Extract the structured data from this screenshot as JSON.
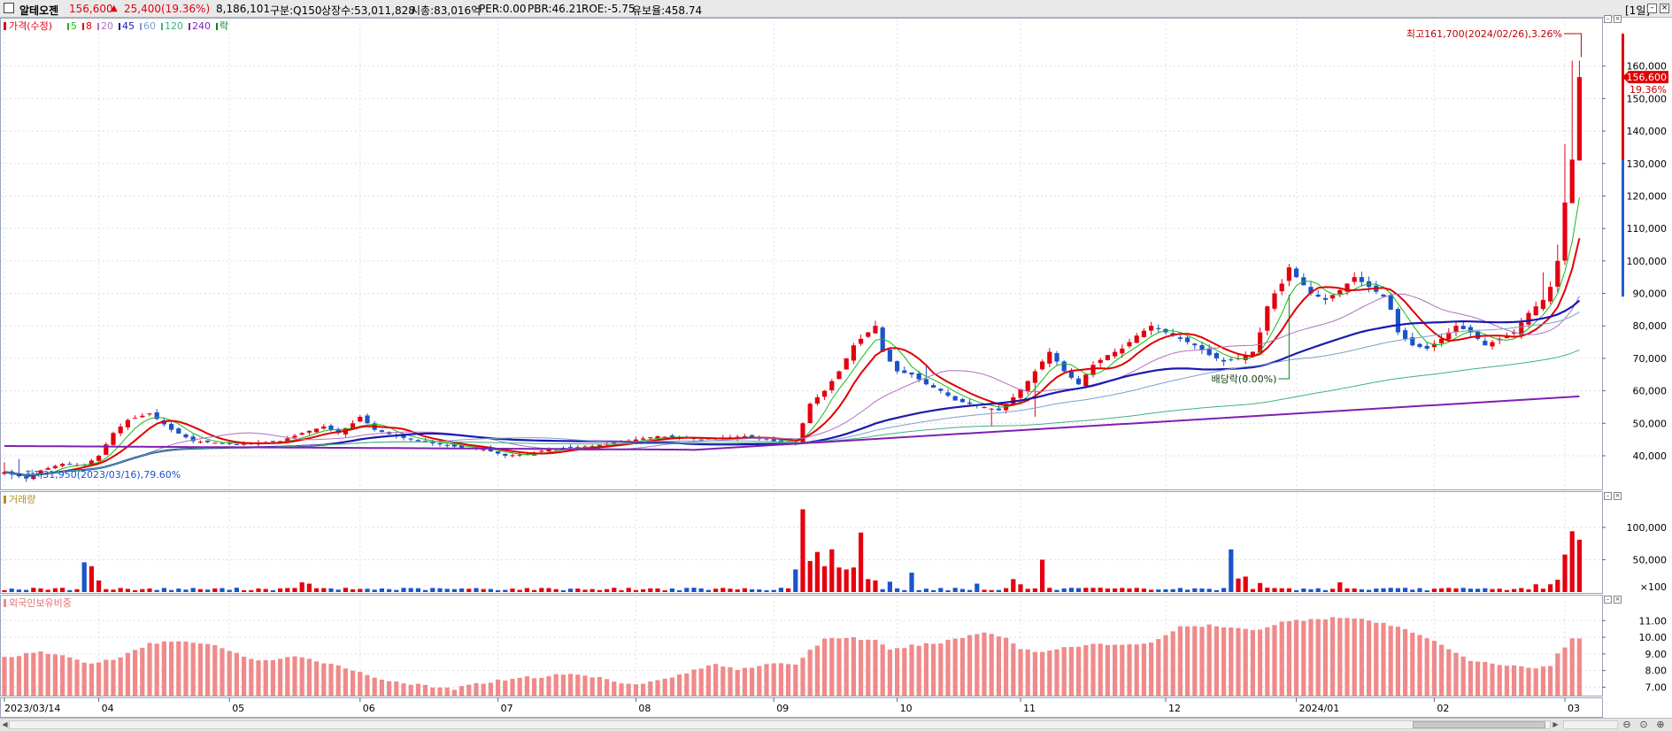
{
  "header": {
    "stock_name": "알테오젠",
    "price": "156,600",
    "change_arrow": "▲",
    "change": "25,400",
    "change_rate": "(19.36%)",
    "volume": "8,186,101",
    "market": "구분:Q150",
    "shares": "상장수:53,011,828",
    "market_cap": "시총:83,016억",
    "per": "PER:0.00",
    "pbr": "PBR:46.21",
    "roe": "ROE:-5.75",
    "float": "유보율:458.74",
    "period": "[1일]",
    "colors": {
      "up": "#e4000f",
      "down": "#1a54c8"
    }
  },
  "price_panel": {
    "legend_label": "가격(수정)",
    "ma_labels": [
      "5",
      "8",
      "20",
      "45",
      "60",
      "120",
      "240",
      "락"
    ],
    "ma_colors": [
      "#18b818",
      "#e00000",
      "#b070c0",
      "#1a1ab0",
      "#7aa0d0",
      "#40b080",
      "#8020b0",
      "#108020"
    ],
    "current_price_tag": "156,600",
    "current_rate_tag": "19.36%",
    "high_annotation": "최고161,700(2024/02/26),3.26%",
    "low_annotation": "최저31,950(2023/03/16),79.60%",
    "dividend_annotation": "배당락(0.00%)"
  },
  "volume_panel": {
    "legend_label": "거래량",
    "unit_label": "×100"
  },
  "foreign_panel": {
    "legend_label": "외국인보유비중"
  },
  "chart_data": [
    {
      "type": "candlestick",
      "name": "가격(수정)",
      "y_ticks": [
        40000,
        50000,
        60000,
        70000,
        80000,
        90000,
        100000,
        110000,
        120000,
        130000,
        140000,
        150000,
        160000
      ],
      "y_tick_labels": [
        "40,000",
        "50,000",
        "60,000",
        "70,000",
        "80,000",
        "90,000",
        "100,000",
        "110,000",
        "120,000",
        "130,000",
        "140,000",
        "150,000",
        "160,000"
      ],
      "ylim": [
        31000,
        170000
      ],
      "x_labels": [
        "2023/03/14",
        "04",
        "05",
        "06",
        "07",
        "08",
        "09",
        "10",
        "11",
        "12",
        "2024/01",
        "02",
        "03"
      ],
      "x_label_positions": [
        0,
        13,
        31,
        49,
        68,
        87,
        106,
        123,
        140,
        160,
        178,
        197,
        215
      ],
      "anchors": [
        [
          0,
          35000
        ],
        [
          3,
          33000
        ],
        [
          5,
          35500
        ],
        [
          8,
          37500
        ],
        [
          11,
          37000
        ],
        [
          13,
          40000
        ],
        [
          15,
          47000
        ],
        [
          17,
          51000
        ],
        [
          20,
          53000
        ],
        [
          23,
          48000
        ],
        [
          26,
          44500
        ],
        [
          29,
          44000
        ],
        [
          32,
          43500
        ],
        [
          35,
          44000
        ],
        [
          38,
          44500
        ],
        [
          41,
          47000
        ],
        [
          44,
          49000
        ],
        [
          46,
          47000
        ],
        [
          48,
          50000
        ],
        [
          49,
          52000
        ],
        [
          51,
          48000
        ],
        [
          54,
          46000
        ],
        [
          57,
          44500
        ],
        [
          60,
          43500
        ],
        [
          63,
          42500
        ],
        [
          66,
          42000
        ],
        [
          69,
          40000
        ],
        [
          72,
          40500
        ],
        [
          75,
          42000
        ],
        [
          78,
          42500
        ],
        [
          81,
          43000
        ],
        [
          84,
          44000
        ],
        [
          87,
          45000
        ],
        [
          90,
          46000
        ],
        [
          93,
          45500
        ],
        [
          96,
          45000
        ],
        [
          99,
          45500
        ],
        [
          102,
          46000
        ],
        [
          105,
          45000
        ],
        [
          107,
          44000
        ],
        [
          109,
          43500
        ],
        [
          110,
          50000
        ],
        [
          111,
          56000
        ],
        [
          113,
          60000
        ],
        [
          115,
          66000
        ],
        [
          117,
          74000
        ],
        [
          119,
          78000
        ],
        [
          120,
          80000
        ],
        [
          121,
          72000
        ],
        [
          123,
          66000
        ],
        [
          125,
          65000
        ],
        [
          127,
          62000
        ],
        [
          129,
          60000
        ],
        [
          131,
          57000
        ],
        [
          133,
          56000
        ],
        [
          135,
          55000
        ],
        [
          137,
          54000
        ],
        [
          139,
          58000
        ],
        [
          141,
          63000
        ],
        [
          143,
          69000
        ],
        [
          144,
          72000
        ],
        [
          146,
          66000
        ],
        [
          148,
          62000
        ],
        [
          150,
          68000
        ],
        [
          152,
          71000
        ],
        [
          154,
          73000
        ],
        [
          156,
          77000
        ],
        [
          158,
          80000
        ],
        [
          160,
          78000
        ],
        [
          162,
          76000
        ],
        [
          164,
          74000
        ],
        [
          166,
          71000
        ],
        [
          168,
          69000
        ],
        [
          170,
          70000
        ],
        [
          172,
          72000
        ],
        [
          173,
          78000
        ],
        [
          174,
          86000
        ],
        [
          175,
          90000
        ],
        [
          176,
          93000
        ],
        [
          177,
          98000
        ],
        [
          178,
          95000
        ],
        [
          180,
          90000
        ],
        [
          182,
          88000
        ],
        [
          184,
          91000
        ],
        [
          186,
          95000
        ],
        [
          188,
          92000
        ],
        [
          190,
          89000
        ],
        [
          191,
          85000
        ],
        [
          192,
          78000
        ],
        [
          194,
          74000
        ],
        [
          196,
          73000
        ],
        [
          198,
          76000
        ],
        [
          200,
          80000
        ],
        [
          202,
          78000
        ],
        [
          204,
          74000
        ],
        [
          206,
          76000
        ],
        [
          208,
          78000
        ],
        [
          210,
          84000
        ],
        [
          212,
          88000
        ],
        [
          213,
          92000
        ],
        [
          214,
          100000
        ],
        [
          215,
          118000
        ],
        [
          216,
          131200
        ],
        [
          217,
          156600
        ]
      ],
      "extra_highs": {
        "0": 38000,
        "2": 39000,
        "127": 68000,
        "212": 96500,
        "214": 105000,
        "215": 136000,
        "216": 161700,
        "217": 161700
      },
      "extra_lows": {
        "3": 31950,
        "136": 49000,
        "142": 52000,
        "216": 119000,
        "217": 136000
      }
    },
    {
      "type": "bar",
      "name": "거래량",
      "y_ticks": [
        50000,
        100000
      ],
      "y_tick_labels": [
        "50,000",
        "100,000"
      ],
      "ylim": [
        0,
        130000
      ],
      "base": 4500,
      "spikes": {
        "11": 46000,
        "12": 40000,
        "13": 18000,
        "41": 15000,
        "42": 13000,
        "109": 35000,
        "110": 128000,
        "111": 48000,
        "112": 62000,
        "113": 40000,
        "114": 66000,
        "115": 38000,
        "116": 35000,
        "117": 38000,
        "118": 92000,
        "119": 20000,
        "120": 18000,
        "122": 16000,
        "125": 30000,
        "134": 13000,
        "139": 20000,
        "140": 12000,
        "143": 50000,
        "169": 66000,
        "170": 21000,
        "171": 24000,
        "173": 14000,
        "184": 15000,
        "211": 12000,
        "213": 12000,
        "214": 19000,
        "215": 58000,
        "216": 94000,
        "217": 81000
      }
    },
    {
      "type": "bar",
      "name": "외국인보유비중",
      "y_ticks": [
        7.0,
        8.0,
        9.0,
        10.0,
        11.0
      ],
      "y_tick_labels": [
        "7.00",
        "8.00",
        "9.00",
        "10.00",
        "11.00"
      ],
      "ylim": [
        6.6,
        11.6
      ],
      "anchors": [
        [
          0,
          8.8
        ],
        [
          5,
          9.1
        ],
        [
          8,
          8.9
        ],
        [
          12,
          8.4
        ],
        [
          16,
          8.8
        ],
        [
          20,
          9.6
        ],
        [
          23,
          9.8
        ],
        [
          27,
          9.6
        ],
        [
          30,
          9.4
        ],
        [
          33,
          8.8
        ],
        [
          36,
          8.6
        ],
        [
          40,
          8.8
        ],
        [
          43,
          8.6
        ],
        [
          47,
          8.2
        ],
        [
          50,
          7.7
        ],
        [
          53,
          7.4
        ],
        [
          56,
          7.2
        ],
        [
          59,
          7.0
        ],
        [
          62,
          6.9
        ],
        [
          65,
          7.2
        ],
        [
          68,
          7.4
        ],
        [
          71,
          7.6
        ],
        [
          74,
          7.6
        ],
        [
          77,
          7.8
        ],
        [
          80,
          7.7
        ],
        [
          83,
          7.5
        ],
        [
          86,
          7.2
        ],
        [
          89,
          7.3
        ],
        [
          92,
          7.6
        ],
        [
          95,
          8.0
        ],
        [
          98,
          8.4
        ],
        [
          101,
          8.1
        ],
        [
          104,
          8.3
        ],
        [
          107,
          8.4
        ],
        [
          109,
          8.4
        ],
        [
          111,
          9.2
        ],
        [
          113,
          9.9
        ],
        [
          116,
          10.0
        ],
        [
          120,
          9.8
        ],
        [
          122,
          9.2
        ],
        [
          125,
          9.5
        ],
        [
          128,
          9.6
        ],
        [
          131,
          9.9
        ],
        [
          135,
          10.3
        ],
        [
          138,
          10.0
        ],
        [
          140,
          9.3
        ],
        [
          143,
          9.1
        ],
        [
          146,
          9.4
        ],
        [
          150,
          9.6
        ],
        [
          154,
          9.5
        ],
        [
          158,
          9.7
        ],
        [
          162,
          10.6
        ],
        [
          166,
          10.7
        ],
        [
          170,
          10.5
        ],
        [
          173,
          10.5
        ],
        [
          176,
          10.9
        ],
        [
          180,
          11.1
        ],
        [
          184,
          11.2
        ],
        [
          188,
          11.0
        ],
        [
          192,
          10.6
        ],
        [
          196,
          10.0
        ],
        [
          198,
          9.6
        ],
        [
          200,
          9.0
        ],
        [
          202,
          8.6
        ],
        [
          205,
          8.4
        ],
        [
          208,
          8.3
        ],
        [
          210,
          8.2
        ],
        [
          212,
          8.2
        ],
        [
          213,
          8.3
        ],
        [
          214,
          9.0
        ],
        [
          215,
          9.4
        ],
        [
          216,
          9.9
        ],
        [
          217,
          9.9
        ]
      ]
    }
  ]
}
